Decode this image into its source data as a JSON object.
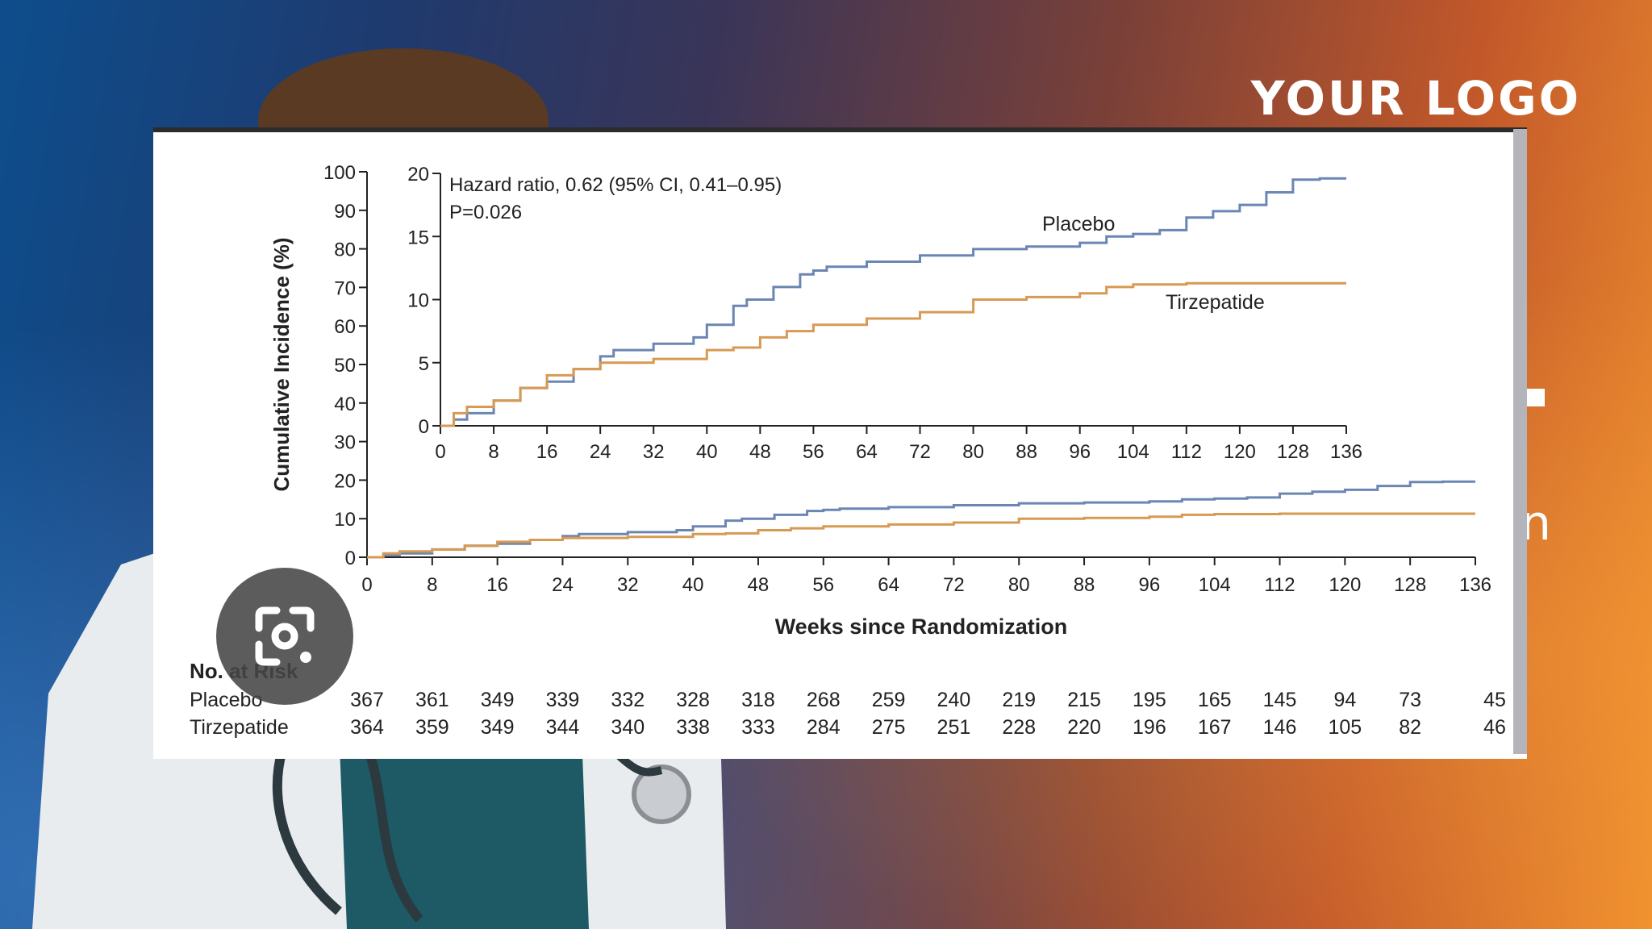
{
  "logo": "YOUR LOGO",
  "background_fragments": [
    "n"
  ],
  "colors": {
    "placebo": "#6b86b3",
    "tirzepatide": "#d79a53",
    "axis": "#222222",
    "panel": "#ffffff"
  },
  "icons": [
    "google-lens-icon"
  ],
  "chart_data": {
    "type": "line",
    "ylabel": "Cumulative Incidence (%)",
    "xlabel": "Weeks since Randomization",
    "ylim": [
      0,
      100
    ],
    "xlim": [
      0,
      136
    ],
    "yticks": [
      0,
      10,
      20,
      30,
      40,
      50,
      60,
      70,
      80,
      90,
      100
    ],
    "xticks": [
      0,
      8,
      16,
      24,
      32,
      40,
      48,
      56,
      64,
      72,
      80,
      88,
      96,
      104,
      112,
      120,
      128,
      136
    ],
    "series": [
      {
        "name": "Placebo",
        "x": [
          0,
          2,
          4,
          8,
          12,
          16,
          20,
          24,
          26,
          32,
          38,
          40,
          44,
          46,
          50,
          54,
          56,
          58,
          64,
          72,
          80,
          88,
          96,
          100,
          104,
          108,
          112,
          116,
          120,
          124,
          128,
          132,
          136
        ],
        "y": [
          0,
          0.5,
          1,
          2,
          3,
          3.5,
          4.5,
          5.5,
          6,
          6.5,
          7,
          8,
          9.5,
          10,
          11,
          12,
          12.3,
          12.6,
          13,
          13.5,
          14,
          14.2,
          14.5,
          15,
          15.2,
          15.5,
          16.5,
          17,
          17.5,
          18.5,
          19.5,
          19.6,
          19.6
        ]
      },
      {
        "name": "Tirzepatide",
        "x": [
          0,
          2,
          4,
          8,
          12,
          16,
          20,
          24,
          32,
          40,
          44,
          48,
          52,
          56,
          64,
          72,
          80,
          88,
          96,
          100,
          104,
          112,
          120,
          128,
          136
        ],
        "y": [
          0,
          1,
          1.5,
          2,
          3,
          4,
          4.5,
          5,
          5.3,
          6,
          6.2,
          7,
          7.5,
          8,
          8.5,
          9,
          10,
          10.2,
          10.5,
          11,
          11.2,
          11.3,
          11.3,
          11.3,
          11.3
        ]
      }
    ],
    "inset": {
      "ylim": [
        0,
        20
      ],
      "xlim": [
        0,
        136
      ],
      "yticks": [
        0,
        5,
        10,
        15,
        20
      ],
      "xticks": [
        0,
        8,
        16,
        24,
        32,
        40,
        48,
        56,
        64,
        72,
        80,
        88,
        96,
        104,
        112,
        120,
        128,
        136
      ],
      "annotation_line1": "Hazard ratio, 0.62 (95% CI, 0.41–0.95)",
      "annotation_line2": "P=0.026",
      "label_placebo": "Placebo",
      "label_tirzepatide": "Tirzepatide"
    },
    "at_risk": {
      "title": "No. at Risk",
      "rows": [
        {
          "label": "Placebo",
          "values": [
            367,
            361,
            349,
            339,
            332,
            328,
            318,
            268,
            259,
            240,
            219,
            215,
            195,
            165,
            145,
            94,
            73,
            45
          ]
        },
        {
          "label": "Tirzepatide",
          "values": [
            364,
            359,
            349,
            344,
            340,
            338,
            333,
            284,
            275,
            251,
            228,
            220,
            196,
            167,
            146,
            105,
            82,
            46
          ]
        }
      ]
    }
  }
}
